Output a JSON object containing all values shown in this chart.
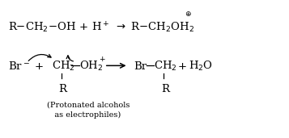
{
  "background_color": "#ffffff",
  "fig_width": 3.57,
  "fig_height": 1.71,
  "dpi": 100,
  "xlim": [
    0,
    10
  ],
  "ylim": [
    0,
    5
  ],
  "fs": 9.5,
  "fs_small": 7.0,
  "fs_super": 6.5
}
